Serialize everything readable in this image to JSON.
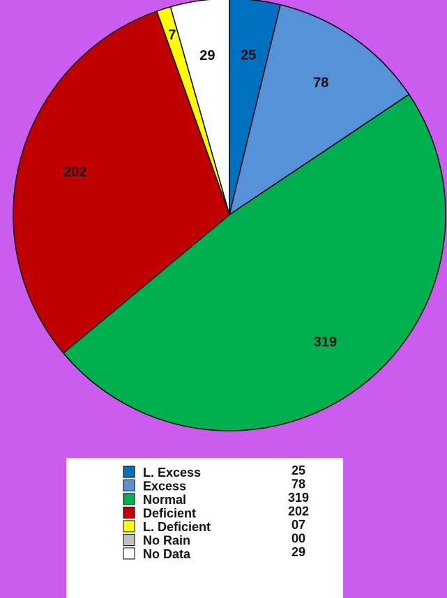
{
  "chart_data": {
    "type": "pie",
    "series": [
      {
        "name": "L. Excess",
        "color": "#0070c0",
        "values": [
          25
        ],
        "value_labels": [
          "25"
        ]
      },
      {
        "name": "Excess",
        "color": "#5592d8",
        "values": [
          78
        ],
        "value_labels": [
          "78"
        ]
      },
      {
        "name": "Normal",
        "color": "#00b050",
        "values": [
          319
        ],
        "value_labels": [
          "319"
        ]
      },
      {
        "name": "Deficient",
        "color": "#c00000",
        "values": [
          202
        ],
        "value_labels": [
          "202"
        ]
      },
      {
        "name": "L. Deficient",
        "color": "#ffff00",
        "values": [
          7
        ],
        "value_labels": [
          "07"
        ]
      },
      {
        "name": "No Rain",
        "color": "#c0c0c0",
        "values": [
          0
        ],
        "value_labels": [
          "00"
        ]
      },
      {
        "name": "No Data",
        "color": "#ffffff",
        "values": [
          29
        ],
        "value_labels": [
          "29"
        ]
      }
    ],
    "legend": "bottom"
  }
}
